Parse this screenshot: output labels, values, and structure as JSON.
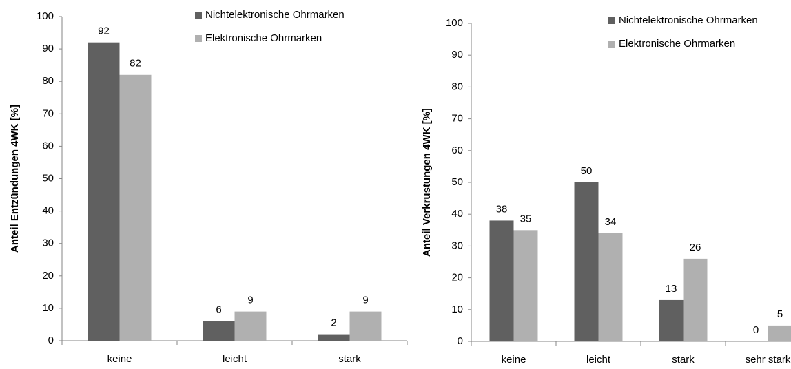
{
  "chart_data": [
    {
      "type": "bar",
      "y_label": "Anteil Entzündungen 4WK [%]",
      "categories": [
        "keine",
        "leicht",
        "stark"
      ],
      "series": [
        {
          "name": "Nichtelektronische Ohrmarken",
          "color": "#606060",
          "values": [
            92,
            6,
            2
          ]
        },
        {
          "name": "Elektronische Ohrmarken",
          "color": "#b0b0b0",
          "values": [
            82,
            9,
            9
          ]
        }
      ],
      "ylim": [
        0,
        100
      ],
      "yticks": [
        0,
        10,
        20,
        30,
        40,
        50,
        60,
        70,
        80,
        90,
        100
      ]
    },
    {
      "type": "bar",
      "y_label": "Anteil Verkrustungen 4WK [%]",
      "categories": [
        "keine",
        "leicht",
        "stark",
        "sehr stark"
      ],
      "series": [
        {
          "name": "Nichtelektronische Ohrmarken",
          "color": "#606060",
          "values": [
            38,
            50,
            13,
            0
          ]
        },
        {
          "name": "Elektronische Ohrmarken",
          "color": "#b0b0b0",
          "values": [
            35,
            34,
            26,
            5
          ]
        }
      ],
      "ylim": [
        0,
        100
      ],
      "yticks": [
        0,
        10,
        20,
        30,
        40,
        50,
        60,
        70,
        80,
        90,
        100
      ]
    }
  ]
}
